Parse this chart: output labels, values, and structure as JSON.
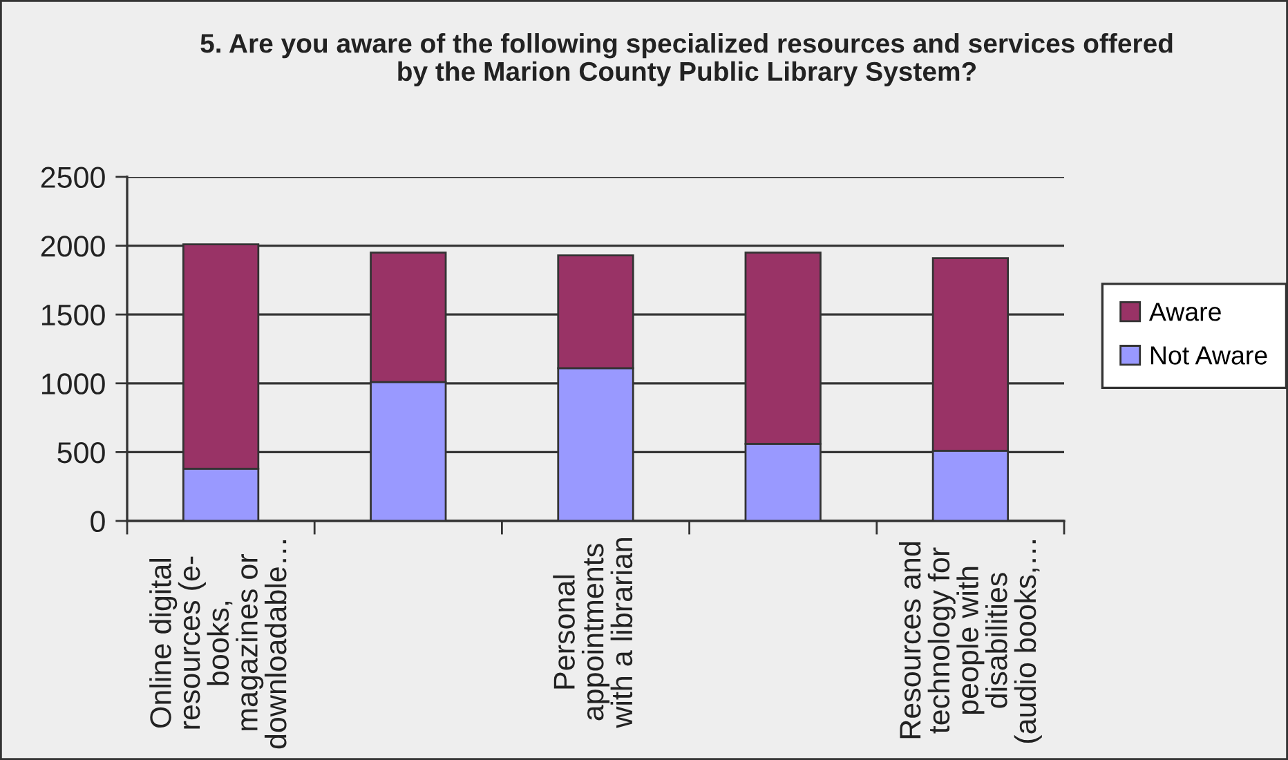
{
  "chart_data": {
    "type": "bar",
    "title": "5. Are you aware of the following specialized resources and services offered\nby the Marion County Public Library System?",
    "categories": [
      "Online digital\nresources (e-\nbooks,\nmagazines or\ndownloadable…",
      null,
      "Personal\nappointments\nwith a librarian",
      null,
      "Resources and\ntechnology for\npeople with\ndisabilities\n(audio books,…"
    ],
    "stacked": true,
    "series": [
      {
        "name": "Not Aware",
        "color": "#9999ff",
        "values": [
          380,
          1010,
          1110,
          560,
          510
        ]
      },
      {
        "name": "Aware",
        "color": "#993366",
        "values": [
          1630,
          940,
          820,
          1390,
          1400
        ]
      }
    ],
    "ylim": [
      0,
      2500
    ],
    "yticks": [
      0,
      500,
      1000,
      1500,
      2000,
      2500
    ],
    "grid": "y",
    "legend": "right"
  }
}
